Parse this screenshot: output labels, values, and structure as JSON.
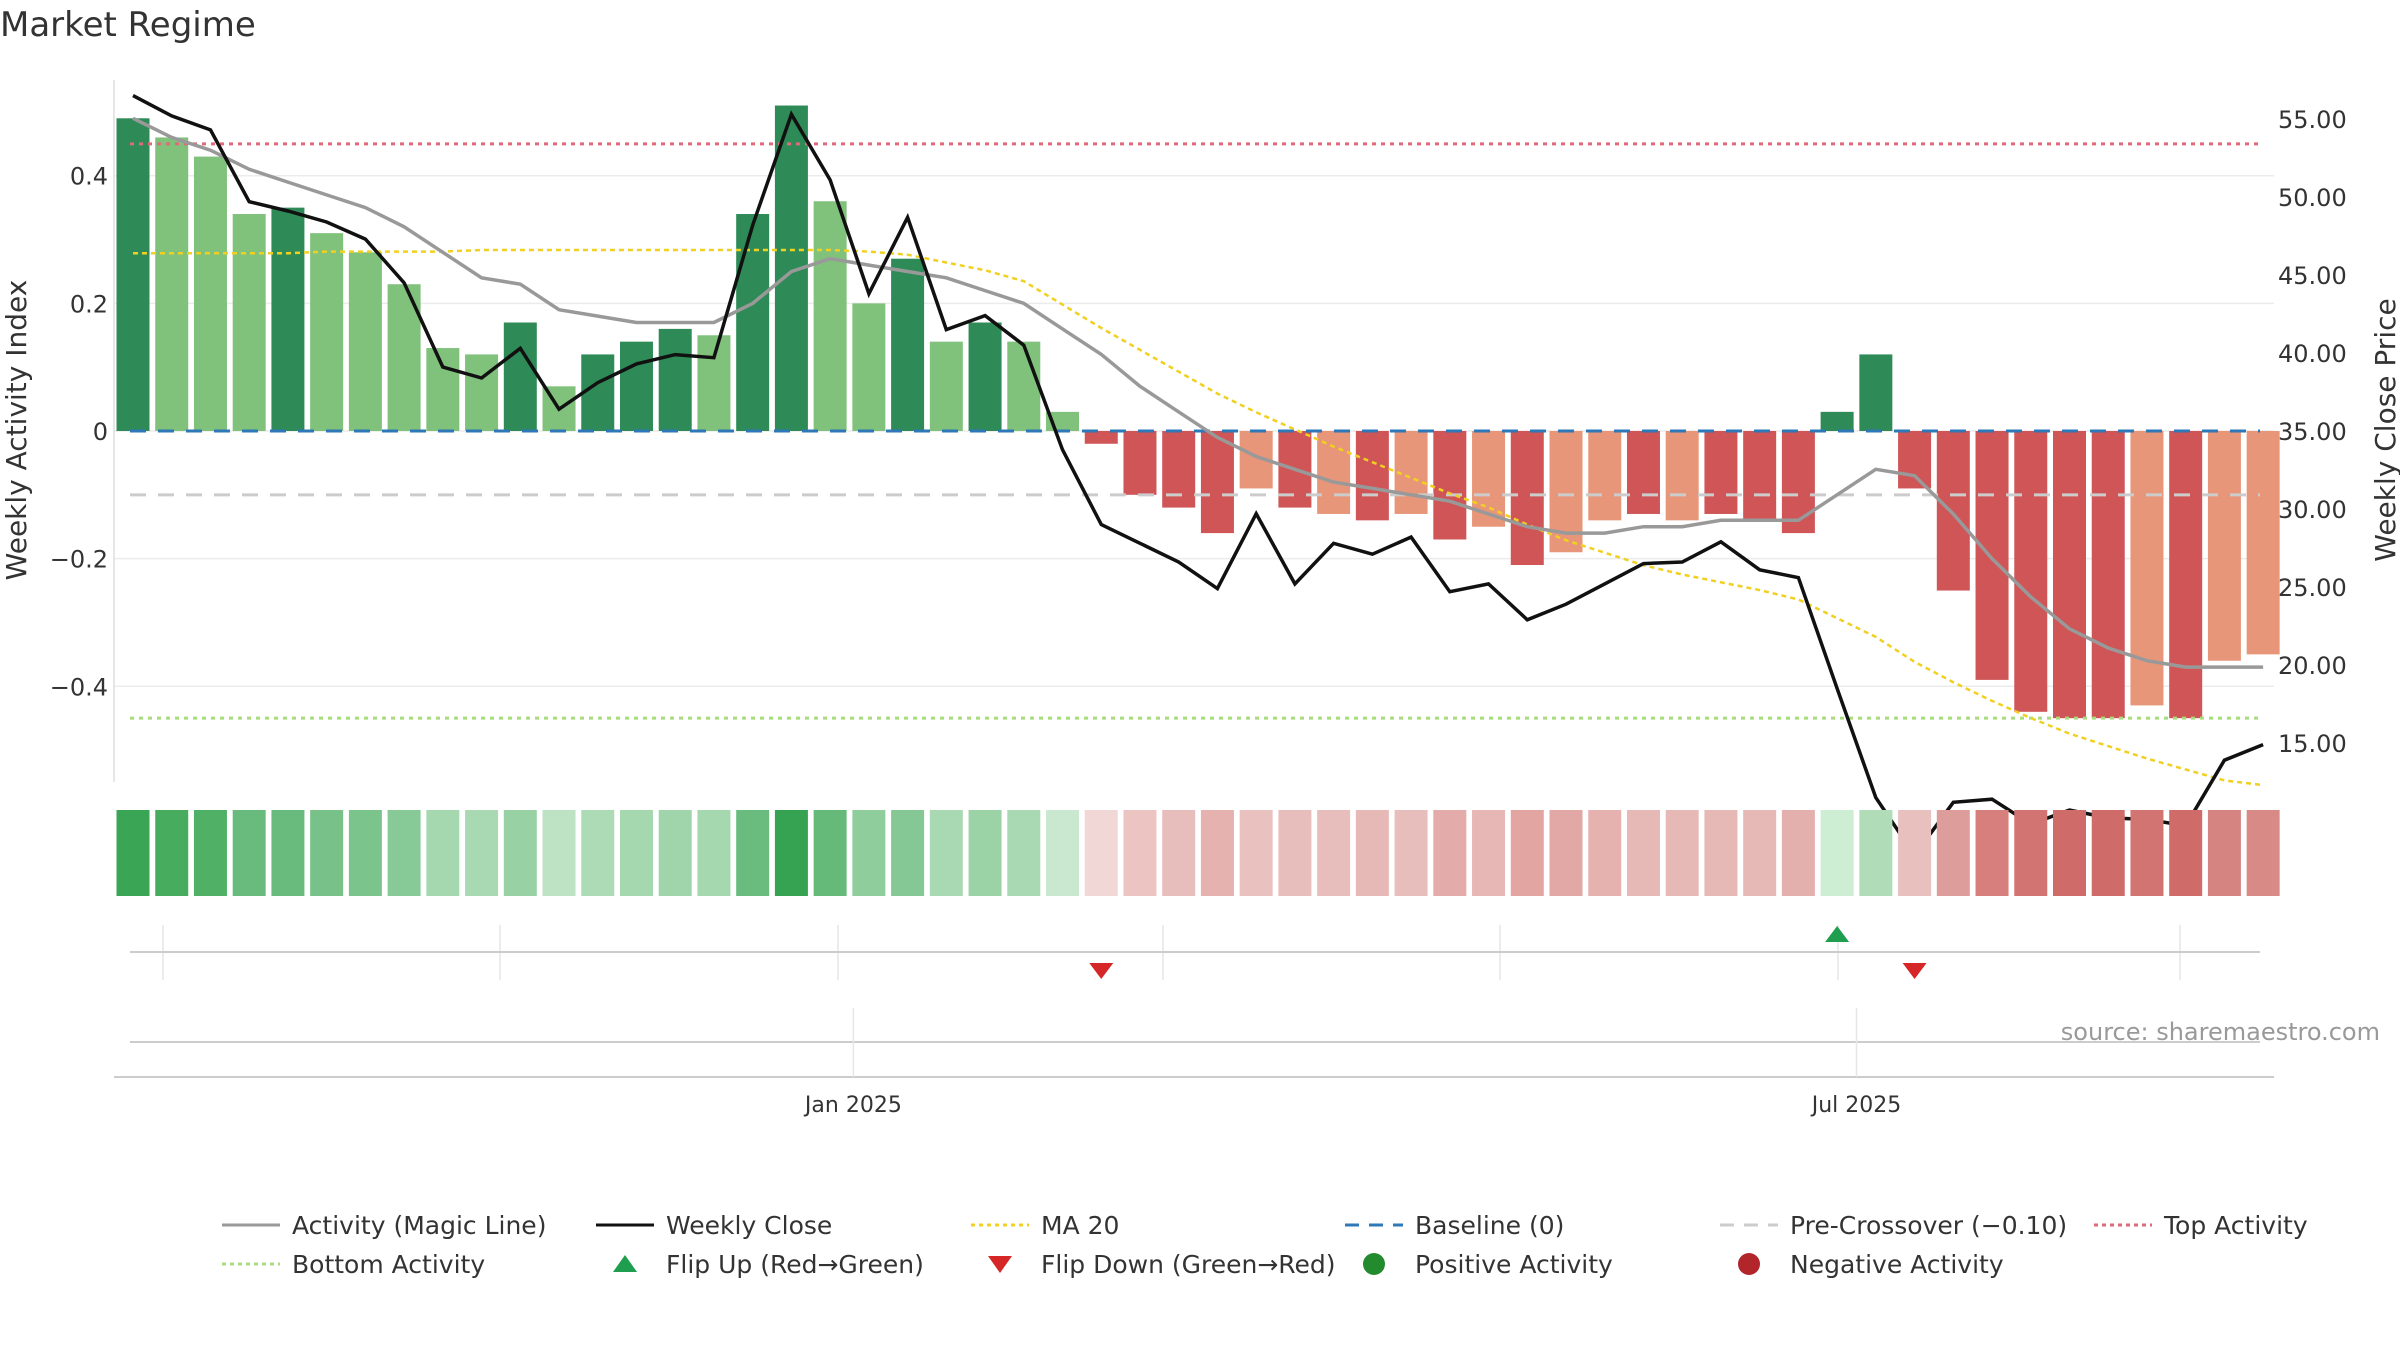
{
  "chart_data": {
    "type": "bar",
    "title": "Market Regime",
    "ylabel_left": "Weekly Activity Index",
    "ylabel_right": "Weekly Close Price",
    "ylim_left": [
      -0.55,
      0.55
    ],
    "ylim_right": [
      12.5,
      57.5
    ],
    "left_ticks": [
      {
        "value": 0.4,
        "label": "0.4"
      },
      {
        "value": 0.2,
        "label": "0.2"
      },
      {
        "value": 0,
        "label": "0"
      },
      {
        "value": -0.2,
        "label": "−0.2"
      },
      {
        "value": -0.4,
        "label": "−0.4"
      }
    ],
    "right_ticks": [
      {
        "value": 55,
        "label": "55.00"
      },
      {
        "value": 50,
        "label": "50.00"
      },
      {
        "value": 45,
        "label": "45.00"
      },
      {
        "value": 40,
        "label": "40.00"
      },
      {
        "value": 35,
        "label": "35.00"
      },
      {
        "value": 30,
        "label": "30.00"
      },
      {
        "value": 25,
        "label": "25.00"
      },
      {
        "value": 20,
        "label": "20.00"
      },
      {
        "value": 15,
        "label": "15.00"
      }
    ],
    "x_labels": [
      {
        "week": 18.6,
        "label": "Jan 2025"
      },
      {
        "week": 44.5,
        "label": "Jul 2025"
      }
    ],
    "activity": [
      0.49,
      0.46,
      0.43,
      0.34,
      0.35,
      0.31,
      0.28,
      0.23,
      0.13,
      0.12,
      0.17,
      0.07,
      0.12,
      0.14,
      0.16,
      0.15,
      0.34,
      0.51,
      0.36,
      0.2,
      0.27,
      0.14,
      0.17,
      0.14,
      0.03,
      -0.02,
      -0.1,
      -0.12,
      -0.16,
      -0.09,
      -0.12,
      -0.13,
      -0.14,
      -0.13,
      -0.17,
      -0.15,
      -0.21,
      -0.19,
      -0.14,
      -0.13,
      -0.14,
      -0.13,
      -0.14,
      -0.16,
      0.03,
      0.12,
      -0.09,
      -0.25,
      -0.39,
      -0.44,
      -0.45,
      -0.45,
      -0.43,
      -0.45,
      -0.36,
      -0.35
    ],
    "strength": [
      "strong",
      "light",
      "light",
      "light",
      "strong",
      "light",
      "light",
      "light",
      "light",
      "light",
      "strong",
      "light",
      "strong",
      "strong",
      "strong",
      "light",
      "strong",
      "strong",
      "light",
      "light",
      "strong",
      "light",
      "strong",
      "light",
      "light",
      "strong",
      "strong",
      "strong",
      "strong",
      "light",
      "strong",
      "light",
      "strong",
      "light",
      "strong",
      "light",
      "strong",
      "light",
      "light",
      "strong",
      "light",
      "strong",
      "strong",
      "strong",
      "strong",
      "strong",
      "strong",
      "strong",
      "strong",
      "strong",
      "strong",
      "strong",
      "light",
      "strong",
      "light",
      "light"
    ],
    "magic_line": [
      0.49,
      0.46,
      0.44,
      0.41,
      0.39,
      0.37,
      0.35,
      0.32,
      0.28,
      0.24,
      0.23,
      0.19,
      0.18,
      0.17,
      0.17,
      0.17,
      0.2,
      0.25,
      0.27,
      0.26,
      0.25,
      0.24,
      0.22,
      0.2,
      0.16,
      0.12,
      0.07,
      0.03,
      -0.01,
      -0.04,
      -0.06,
      -0.08,
      -0.09,
      -0.1,
      -0.11,
      -0.13,
      -0.15,
      -0.16,
      -0.16,
      -0.15,
      -0.15,
      -0.14,
      -0.14,
      -0.14,
      -0.1,
      -0.06,
      -0.07,
      -0.13,
      -0.2,
      -0.26,
      -0.31,
      -0.34,
      -0.36,
      -0.37,
      -0.37,
      -0.37
    ],
    "weekly_close": [
      56.5,
      55.2,
      54.3,
      49.7,
      49.1,
      48.4,
      47.3,
      44.5,
      39.1,
      38.4,
      40.3,
      36.4,
      38.1,
      39.3,
      39.9,
      39.7,
      48.2,
      55.3,
      51.1,
      43.8,
      48.7,
      41.5,
      42.4,
      40.5,
      33.8,
      29.0,
      27.8,
      26.6,
      24.9,
      29.7,
      25.2,
      27.8,
      27.1,
      28.2,
      24.7,
      25.2,
      22.9,
      23.9,
      25.2,
      26.5,
      26.6,
      27.9,
      26.1,
      25.6,
      18.5,
      11.5,
      7.8,
      11.2,
      11.4,
      9.8,
      10.7,
      10.2,
      10.1,
      9.7,
      13.9,
      14.9
    ],
    "ma20": [
      46.4,
      46.4,
      46.4,
      46.4,
      46.4,
      46.5,
      46.5,
      46.5,
      46.5,
      46.6,
      46.6,
      46.6,
      46.6,
      46.6,
      46.6,
      46.6,
      46.6,
      46.6,
      46.6,
      46.5,
      46.3,
      45.8,
      45.3,
      44.6,
      43.1,
      41.6,
      40.2,
      38.8,
      37.4,
      36.2,
      35.1,
      34.0,
      33.0,
      32.0,
      31.0,
      30.1,
      29.0,
      28.0,
      27.2,
      26.4,
      25.8,
      25.3,
      24.8,
      24.2,
      23.0,
      21.8,
      20.2,
      18.9,
      17.7,
      16.6,
      15.6,
      14.8,
      14.0,
      13.3,
      12.6,
      12.3
    ],
    "heat_strip": [
      "#3aa655",
      "#48ac5f",
      "#4fb066",
      "#69bb7d",
      "#69bb7d",
      "#78c28a",
      "#7bc48c",
      "#88ca97",
      "#a6d8b0",
      "#a8d9b2",
      "#98d1a4",
      "#bde2c4",
      "#addbb6",
      "#a6d8b0",
      "#a0d5ab",
      "#a6d8b0",
      "#6abc7e",
      "#35a351",
      "#65ba7a",
      "#8fcd9d",
      "#86c895",
      "#a8d9b2",
      "#9bd3a7",
      "#a8d9b2",
      "#c9e8cf",
      "#f1d7d6",
      "#ecc5c3",
      "#e8bebc",
      "#e5b2b0",
      "#e9c1bf",
      "#e8bebc",
      "#e8bebc",
      "#e6b8b6",
      "#e8bebc",
      "#e3acaa",
      "#e6b7b5",
      "#e2a5a2",
      "#e2a8a6",
      "#e5b2b0",
      "#e6b8b6",
      "#e6b8b6",
      "#e6b8b6",
      "#e6b8b6",
      "#e3b0ae",
      "#cdeed3",
      "#b0dcb8",
      "#e8c0be",
      "#dd9d9a",
      "#d77f7c",
      "#d27472",
      "#cf6c69",
      "#cf6c69",
      "#d17472",
      "#cf6c69",
      "#d68482",
      "#d88a87"
    ],
    "flips": [
      {
        "week": 25,
        "direction": "down"
      },
      {
        "week": 44,
        "direction": "up"
      },
      {
        "week": 46,
        "direction": "down"
      }
    ],
    "reference_lines": {
      "top_activity": 0.45,
      "bottom_activity": -0.45,
      "baseline": 0,
      "pre_crossover": -0.1
    },
    "source": "source: sharemaestro.com",
    "legend": [
      {
        "label": "Activity (Magic Line)",
        "kind": "line",
        "color": "#999999",
        "dash": ""
      },
      {
        "label": "Weekly Close",
        "kind": "line",
        "color": "#111111",
        "dash": ""
      },
      {
        "label": "MA 20",
        "kind": "line",
        "color": "#f0d020",
        "dash": "4,4"
      },
      {
        "label": "Baseline (0)",
        "kind": "line",
        "color": "#2f78b7",
        "dash": "14,10"
      },
      {
        "label": "Pre-Crossover (−0.10)",
        "kind": "line",
        "color": "#cccccc",
        "dash": "14,10"
      },
      {
        "label": "Top Activity",
        "kind": "line",
        "color": "#e06a7a",
        "dash": "4,4"
      },
      {
        "label": "Bottom Activity",
        "kind": "line",
        "color": "#a8dc7c",
        "dash": "4,4"
      },
      {
        "label": "Flip Up (Red→Green)",
        "kind": "tri-up",
        "color": "#1e9e4e",
        "dash": ""
      },
      {
        "label": "Flip Down (Green→Red)",
        "kind": "tri-down",
        "color": "#d62728",
        "dash": ""
      },
      {
        "label": "Positive Activity",
        "kind": "dot",
        "color": "#238b2e",
        "dash": ""
      },
      {
        "label": "Negative Activity",
        "kind": "dot",
        "color": "#b2262b",
        "dash": ""
      }
    ],
    "colors": {
      "pos_strong": "#2e8b57",
      "pos_light": "#80c17c",
      "neg_strong": "#cf5557",
      "neg_light": "#e8967a",
      "grid": "#ececec",
      "text": "#333333"
    }
  }
}
